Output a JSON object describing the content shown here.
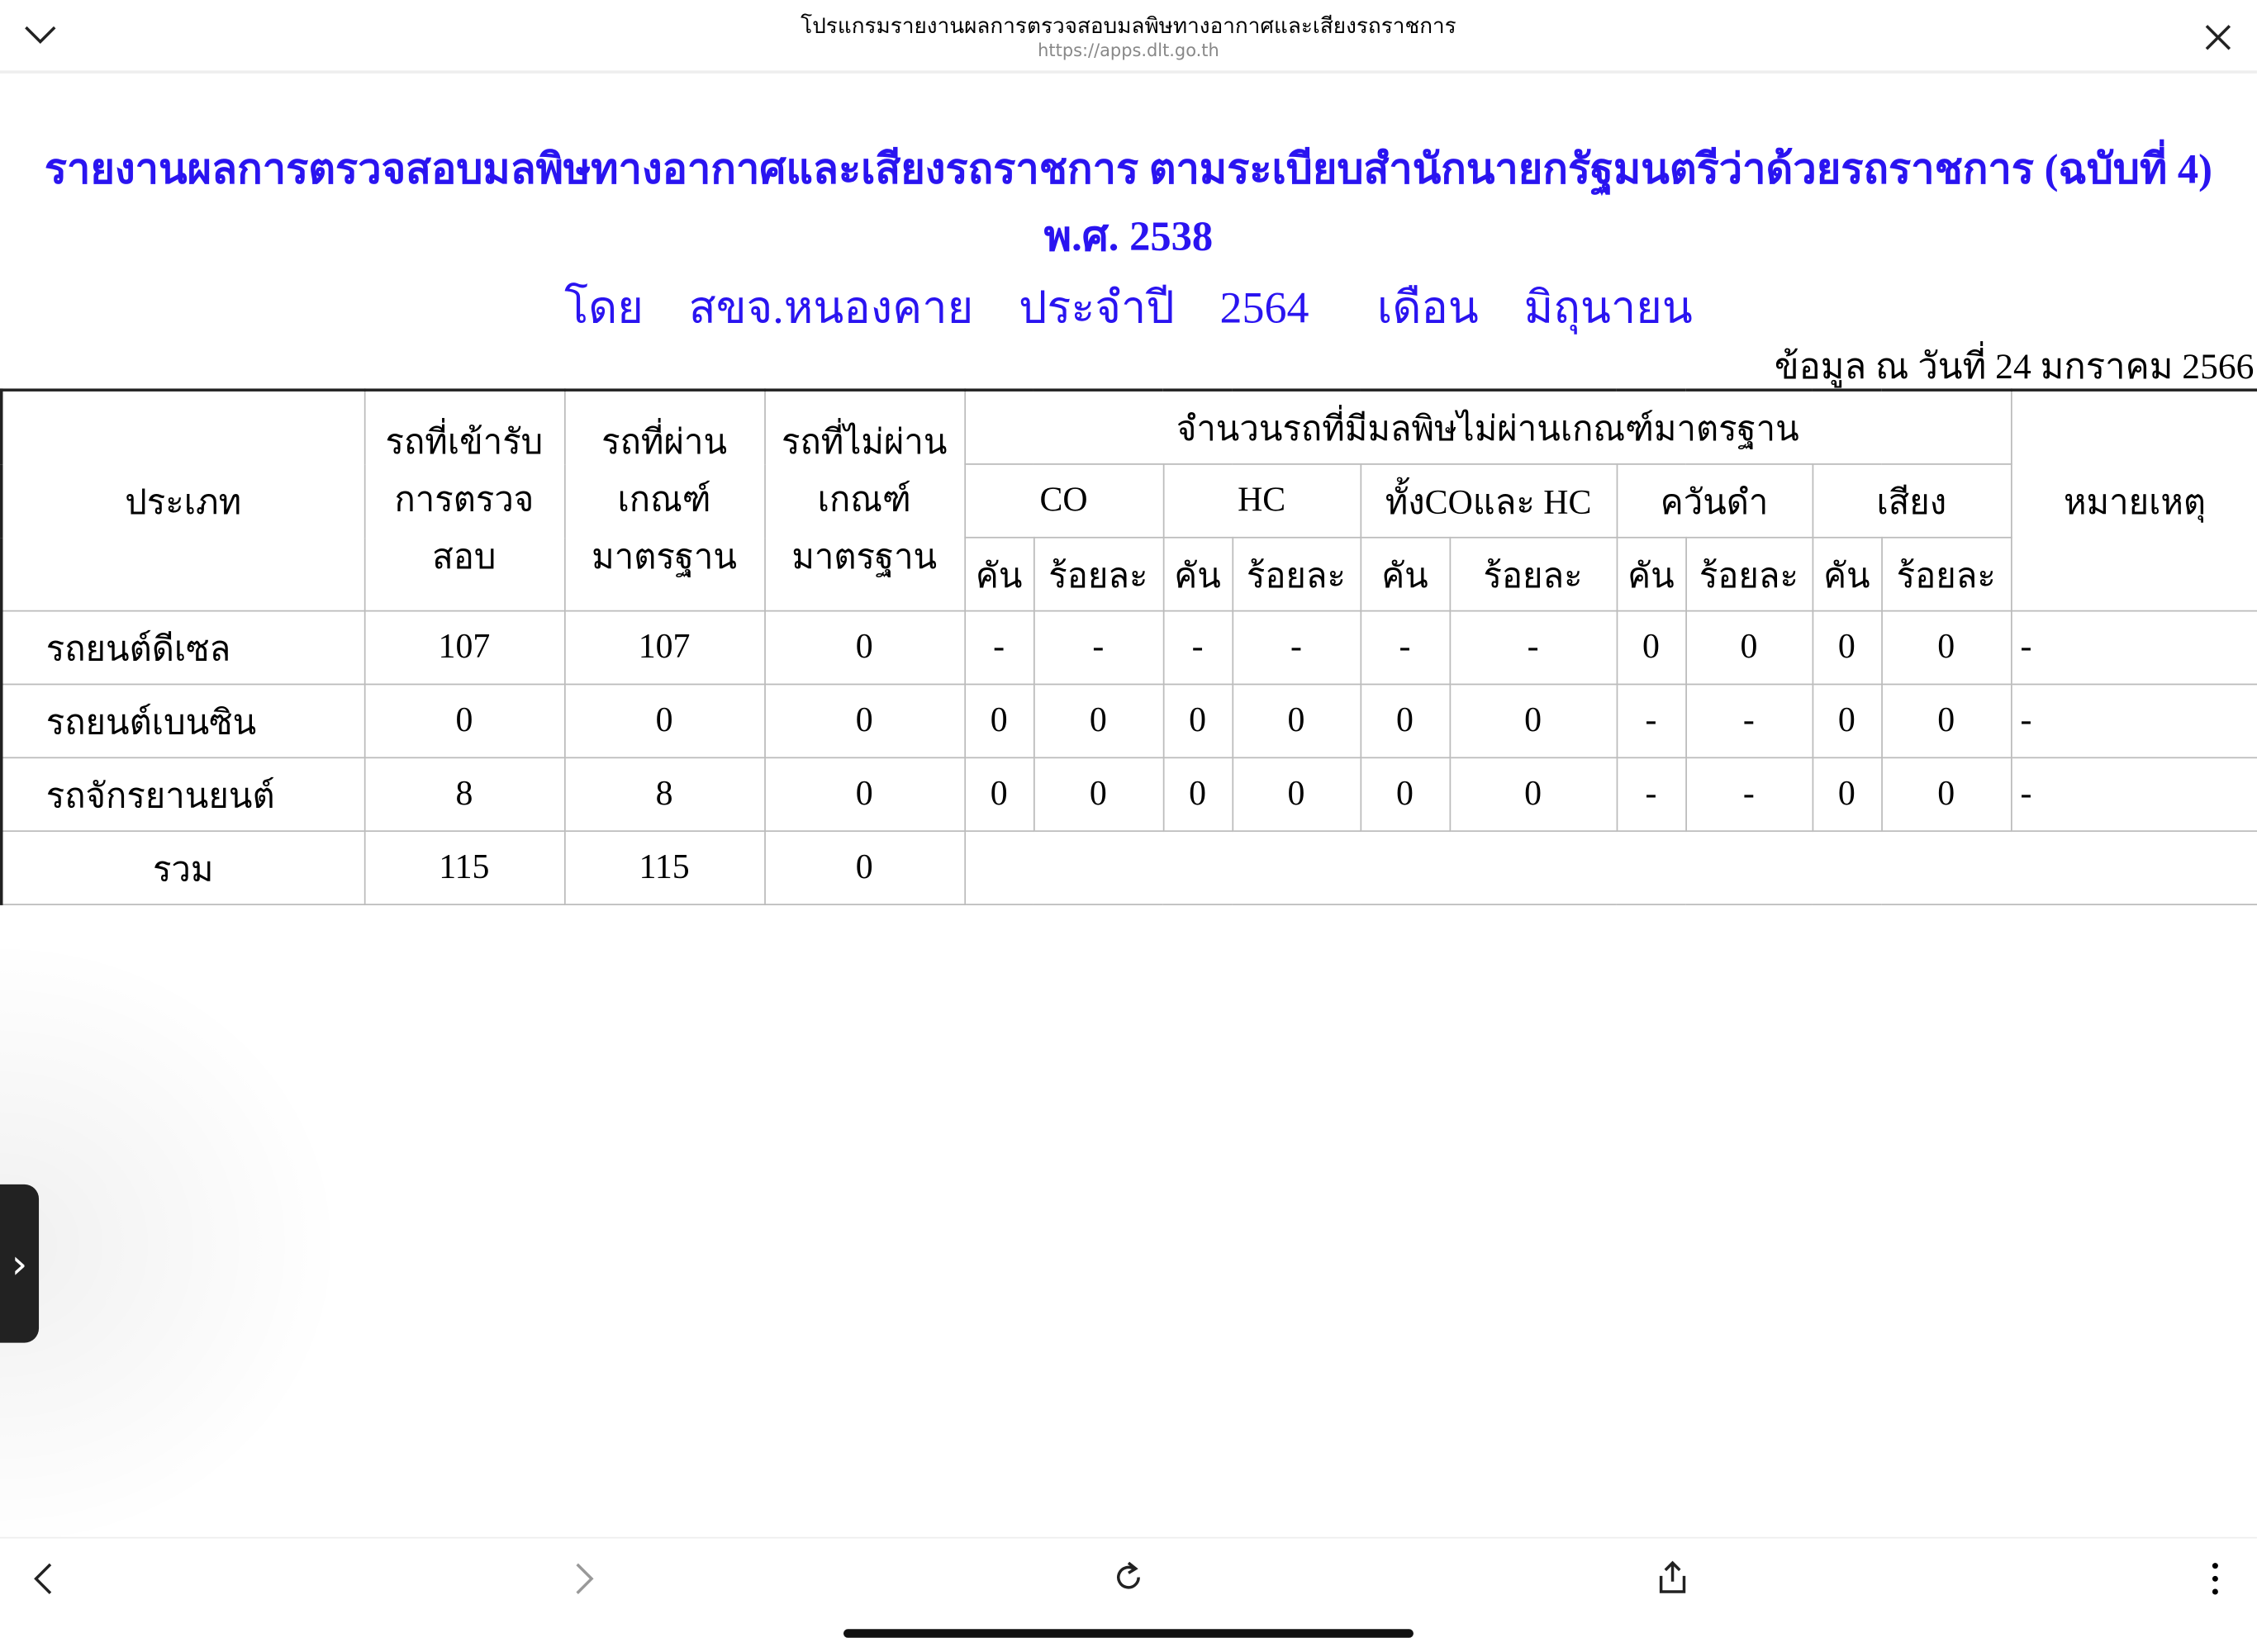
{
  "browser": {
    "title": "โปรแกรมรายงานผลการตรวจสอบมลพิษทางอากาศและเสียงรถราชการ",
    "url": "https://apps.dlt.go.th",
    "icons": [
      "chevron-down-icon",
      "close-icon",
      "back-icon",
      "forward-icon",
      "reload-icon",
      "share-icon",
      "more-icon"
    ]
  },
  "report": {
    "title": "รายงานผลการตรวจสอบมลพิษทางอากาศและเสียงรถราชการ ตามระเบียบสำนักนายกรัฐมนตรีว่าด้วยรถราชการ (ฉบับที่ 4) พ.ศ. 2538",
    "subtitle": "โดย  สขจ.หนองคาย  ประจำปี  2564   เดือน  มิถุนายน",
    "as_of": "ข้อมูล ณ วันที่ 24 มกราคม 2566",
    "title_color": "#2a14f0"
  },
  "table": {
    "headers": {
      "type": "ประเภท",
      "inspected": "รถที่เข้ารับการตรวจสอบ",
      "passed": "รถที่ผ่านเกณฑ์มาตรฐาน",
      "failed": "รถที่ไม่ผ่านเกณฑ์มาตรฐาน",
      "fail_group": "จำนวนรถที่มีมลพิษไม่ผ่านเกณฑ์มาตรฐาน",
      "remark": "หมายเหตุ",
      "groups": [
        "CO",
        "HC",
        "ทั้งCOและ HC",
        "ควันดำ",
        "เสียง"
      ],
      "unit": "คัน",
      "percent": "ร้อยละ"
    },
    "rows": [
      {
        "type": "รถยนต์ดีเซล",
        "inspected": "107",
        "passed": "107",
        "failed": "0",
        "values": [
          "-",
          "-",
          "-",
          "-",
          "-",
          "-",
          "0",
          "0",
          "0",
          "0"
        ],
        "remark": "-"
      },
      {
        "type": "รถยนต์เบนซิน",
        "inspected": "0",
        "passed": "0",
        "failed": "0",
        "values": [
          "0",
          "0",
          "0",
          "0",
          "0",
          "0",
          "-",
          "-",
          "0",
          "0"
        ],
        "remark": "-"
      },
      {
        "type": "รถจักรยานยนต์",
        "inspected": "8",
        "passed": "8",
        "failed": "0",
        "values": [
          "0",
          "0",
          "0",
          "0",
          "0",
          "0",
          "-",
          "-",
          "0",
          "0"
        ],
        "remark": "-"
      }
    ],
    "total": {
      "label": "รวม",
      "inspected": "115",
      "passed": "115",
      "failed": "0"
    }
  }
}
